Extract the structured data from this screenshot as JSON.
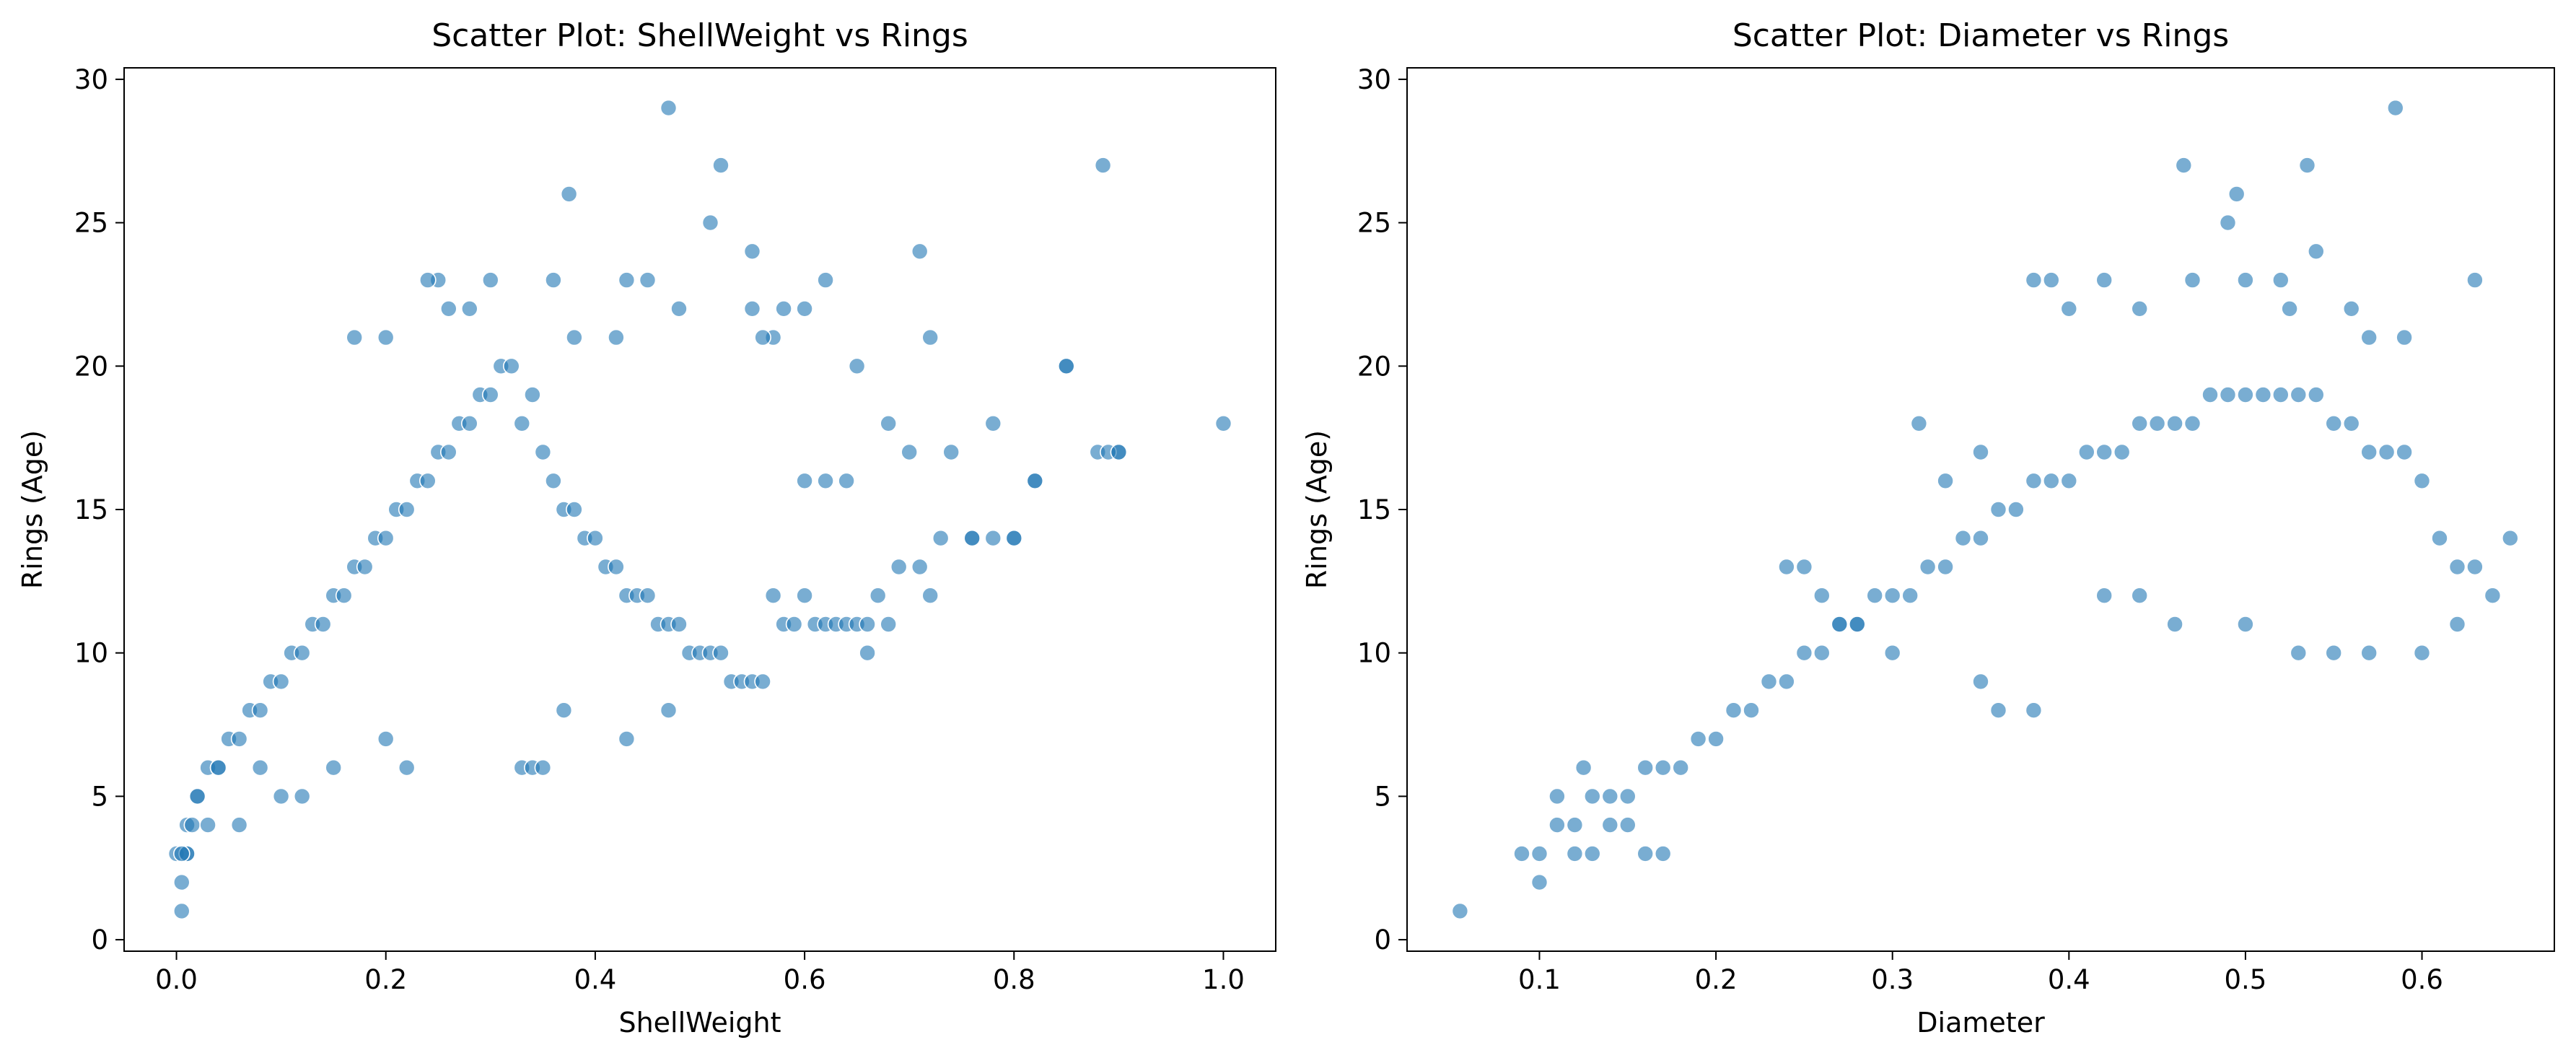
{
  "figure": {
    "background": "#ffffff"
  },
  "chart_data": [
    {
      "type": "scatter",
      "title": "Scatter Plot: ShellWeight vs Rings",
      "xlabel": "ShellWeight",
      "ylabel": "Rings (Age)",
      "xlim": [
        -0.05,
        1.05
      ],
      "ylim": [
        -0.4,
        30.4
      ],
      "xticks": [
        0.0,
        0.2,
        0.4,
        0.6,
        0.8,
        1.0
      ],
      "xtick_labels": [
        "0.0",
        "0.2",
        "0.4",
        "0.6",
        "0.8",
        "1.0"
      ],
      "yticks": [
        0,
        5,
        10,
        15,
        20,
        25,
        30
      ],
      "ytick_labels": [
        "0",
        "5",
        "10",
        "15",
        "20",
        "25",
        "30"
      ],
      "grid": false,
      "marker_color": "#1f77b4",
      "marker_alpha": 0.6,
      "series": [
        {
          "x": [
            0.0,
            0.01,
            0.02,
            0.03,
            0.04,
            0.05,
            0.06,
            0.07,
            0.08,
            0.09,
            0.1,
            0.11,
            0.12,
            0.13,
            0.14,
            0.15,
            0.16,
            0.17,
            0.18,
            0.19,
            0.2,
            0.21,
            0.22,
            0.23,
            0.24,
            0.25,
            0.26,
            0.27,
            0.28,
            0.29,
            0.3,
            0.31,
            0.32,
            0.33,
            0.34,
            0.35,
            0.36,
            0.37,
            0.38,
            0.39,
            0.4,
            0.41,
            0.42,
            0.43,
            0.44,
            0.45,
            0.46,
            0.47,
            0.48,
            0.49,
            0.5,
            0.51,
            0.52,
            0.53,
            0.54,
            0.55,
            0.56,
            0.57,
            0.58,
            0.59,
            0.6,
            0.61,
            0.62,
            0.63,
            0.64,
            0.65,
            0.66,
            0.67,
            0.68,
            0.69,
            0.7,
            0.71,
            0.72,
            0.74,
            0.76,
            0.78,
            0.8,
            0.82,
            0.85,
            0.88,
            0.9,
            1.0,
            0.005,
            0.005,
            0.01,
            0.015,
            0.02,
            0.03,
            0.01,
            0.005,
            0.47,
            0.52,
            0.51,
            0.375,
            0.55,
            0.885,
            0.71,
            0.62,
            0.48,
            0.25,
            0.26,
            0.3,
            0.36,
            0.43,
            0.45,
            0.58,
            0.6,
            0.17,
            0.2,
            0.24,
            0.28,
            0.38,
            0.42,
            0.57,
            0.72,
            0.85,
            0.68,
            0.78,
            0.65,
            0.73,
            0.66,
            0.76,
            0.8,
            0.82,
            0.89,
            0.9,
            0.62,
            0.64,
            0.6,
            0.55,
            0.56,
            0.33,
            0.34,
            0.35,
            0.43,
            0.37,
            0.47,
            0.2,
            0.22,
            0.15,
            0.1,
            0.12,
            0.08,
            0.06,
            0.04
          ],
          "y": [
            3,
            4,
            5,
            6,
            6,
            7,
            7,
            8,
            8,
            9,
            9,
            10,
            10,
            11,
            11,
            12,
            12,
            13,
            13,
            14,
            14,
            15,
            15,
            16,
            16,
            17,
            17,
            18,
            18,
            19,
            19,
            20,
            20,
            18,
            19,
            17,
            16,
            15,
            15,
            14,
            14,
            13,
            13,
            12,
            12,
            12,
            11,
            11,
            11,
            10,
            10,
            10,
            10,
            9,
            9,
            9,
            9,
            12,
            11,
            11,
            12,
            11,
            11,
            11,
            11,
            11,
            11,
            12,
            11,
            13,
            17,
            13,
            12,
            17,
            14,
            14,
            14,
            16,
            20,
            17,
            17,
            18,
            1,
            2,
            3,
            4,
            5,
            4,
            3,
            3,
            29,
            27,
            25,
            26,
            24,
            27,
            24,
            23,
            22,
            23,
            22,
            23,
            23,
            23,
            23,
            22,
            22,
            21,
            21,
            23,
            22,
            21,
            21,
            21,
            21,
            20,
            18,
            18,
            20,
            14,
            10,
            14,
            14,
            16,
            17,
            17,
            16,
            16,
            16,
            22,
            21,
            6,
            6,
            6,
            7,
            8,
            8,
            7,
            6,
            6,
            5,
            5,
            6,
            4,
            6
          ]
        }
      ]
    },
    {
      "type": "scatter",
      "title": "Scatter Plot: Diameter vs Rings",
      "xlabel": "Diameter",
      "ylabel": "Rings (Age)",
      "xlim": [
        0.025,
        0.675
      ],
      "ylim": [
        -0.4,
        30.4
      ],
      "xticks": [
        0.1,
        0.2,
        0.3,
        0.4,
        0.5,
        0.6
      ],
      "xtick_labels": [
        "0.1",
        "0.2",
        "0.3",
        "0.4",
        "0.5",
        "0.6"
      ],
      "yticks": [
        0,
        5,
        10,
        15,
        20,
        25,
        30
      ],
      "ytick_labels": [
        "0",
        "5",
        "10",
        "15",
        "20",
        "25",
        "30"
      ],
      "grid": false,
      "marker_color": "#1f77b4",
      "marker_alpha": 0.6,
      "series": [
        {
          "x": [
            0.055,
            0.1,
            0.09,
            0.1,
            0.11,
            0.12,
            0.13,
            0.14,
            0.15,
            0.16,
            0.17,
            0.18,
            0.19,
            0.2,
            0.21,
            0.22,
            0.23,
            0.24,
            0.25,
            0.26,
            0.27,
            0.28,
            0.29,
            0.3,
            0.31,
            0.32,
            0.33,
            0.34,
            0.35,
            0.36,
            0.37,
            0.38,
            0.39,
            0.4,
            0.41,
            0.42,
            0.43,
            0.44,
            0.45,
            0.46,
            0.47,
            0.48,
            0.49,
            0.5,
            0.51,
            0.52,
            0.53,
            0.54,
            0.55,
            0.56,
            0.57,
            0.58,
            0.59,
            0.6,
            0.61,
            0.62,
            0.63,
            0.65,
            0.585,
            0.465,
            0.535,
            0.495,
            0.49,
            0.54,
            0.5,
            0.63,
            0.38,
            0.39,
            0.4,
            0.42,
            0.44,
            0.47,
            0.52,
            0.525,
            0.56,
            0.57,
            0.59,
            0.315,
            0.33,
            0.35,
            0.24,
            0.25,
            0.26,
            0.27,
            0.28,
            0.3,
            0.35,
            0.36,
            0.38,
            0.15,
            0.16,
            0.17,
            0.12,
            0.13,
            0.14,
            0.125,
            0.11,
            0.42,
            0.44,
            0.46,
            0.5,
            0.53,
            0.55,
            0.57,
            0.6,
            0.62,
            0.64
          ],
          "y": [
            1,
            2,
            3,
            3,
            4,
            4,
            5,
            5,
            5,
            6,
            6,
            6,
            7,
            7,
            8,
            8,
            9,
            9,
            10,
            10,
            11,
            11,
            12,
            12,
            12,
            13,
            13,
            14,
            14,
            15,
            15,
            16,
            16,
            16,
            17,
            17,
            17,
            18,
            18,
            18,
            18,
            19,
            19,
            19,
            19,
            19,
            19,
            19,
            18,
            18,
            17,
            17,
            17,
            16,
            14,
            13,
            13,
            14,
            29,
            27,
            27,
            26,
            25,
            24,
            23,
            23,
            23,
            23,
            22,
            23,
            22,
            23,
            23,
            22,
            22,
            21,
            21,
            18,
            16,
            17,
            13,
            13,
            12,
            11,
            11,
            10,
            9,
            8,
            8,
            4,
            3,
            3,
            3,
            3,
            4,
            6,
            5,
            12,
            12,
            11,
            11,
            10,
            10,
            10,
            10,
            11,
            12
          ]
        }
      ]
    }
  ]
}
